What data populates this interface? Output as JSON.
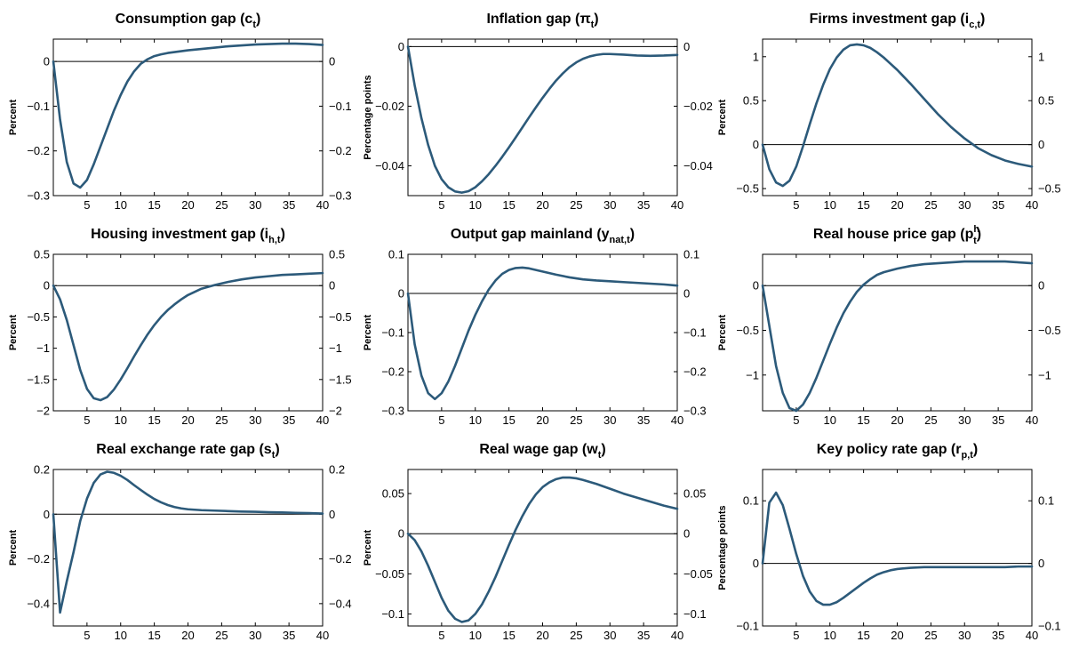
{
  "figure": {
    "line_color": "#2c5a7a",
    "axis_color": "#000000",
    "background": "#ffffff"
  },
  "chart_data": [
    {
      "type": "line",
      "title": "Consumption gap (c",
      "title_sub": "t",
      "title_close": ")",
      "ylabel": "Percent",
      "xlim": [
        0,
        40
      ],
      "ylim": [
        -0.3,
        0.05
      ],
      "xticks": [
        5,
        10,
        15,
        20,
        25,
        30,
        35,
        40
      ],
      "xtick_labels": [
        "5",
        "10",
        "15",
        "20",
        "25",
        "30",
        "35",
        "40"
      ],
      "yticks": [
        0,
        -0.1,
        -0.2,
        -0.3
      ],
      "ytick_labels": [
        "0",
        "−0.1",
        "−0.2",
        "−0.3"
      ],
      "x": [
        0,
        1,
        2,
        3,
        4,
        5,
        6,
        7,
        8,
        9,
        10,
        11,
        12,
        13,
        14,
        15,
        16,
        17,
        18,
        19,
        20,
        22,
        24,
        26,
        28,
        30,
        32,
        34,
        36,
        38,
        40
      ],
      "series": [
        {
          "values": [
            0,
            -0.13,
            -0.225,
            -0.273,
            -0.282,
            -0.265,
            -0.23,
            -0.19,
            -0.15,
            -0.11,
            -0.075,
            -0.045,
            -0.022,
            -0.005,
            0.005,
            0.012,
            0.016,
            0.019,
            0.021,
            0.023,
            0.025,
            0.028,
            0.031,
            0.034,
            0.036,
            0.038,
            0.039,
            0.04,
            0.04,
            0.039,
            0.037
          ]
        }
      ]
    },
    {
      "type": "line",
      "title": "Inflation gap (π",
      "title_sub": "t",
      "title_close": ")",
      "ylabel": "Percentage points",
      "xlim": [
        0,
        40
      ],
      "ylim": [
        -0.05,
        0.0025
      ],
      "xticks": [
        5,
        10,
        15,
        20,
        25,
        30,
        35,
        40
      ],
      "xtick_labels": [
        "5",
        "10",
        "15",
        "20",
        "25",
        "30",
        "35",
        "40"
      ],
      "yticks": [
        0,
        -0.02,
        -0.04
      ],
      "ytick_labels": [
        "0",
        "−0.02",
        "−0.04"
      ],
      "x": [
        0,
        1,
        2,
        3,
        4,
        5,
        6,
        7,
        8,
        9,
        10,
        11,
        12,
        13,
        14,
        15,
        16,
        17,
        18,
        19,
        20,
        21,
        22,
        23,
        24,
        25,
        26,
        27,
        28,
        29,
        30,
        32,
        34,
        36,
        38,
        40
      ],
      "series": [
        {
          "values": [
            0,
            -0.013,
            -0.024,
            -0.033,
            -0.04,
            -0.0445,
            -0.0472,
            -0.0486,
            -0.049,
            -0.0485,
            -0.0472,
            -0.0452,
            -0.0428,
            -0.04,
            -0.037,
            -0.0338,
            -0.0305,
            -0.0271,
            -0.0237,
            -0.0204,
            -0.0172,
            -0.0142,
            -0.0114,
            -0.009,
            -0.0069,
            -0.0053,
            -0.0041,
            -0.0033,
            -0.0028,
            -0.0025,
            -0.0025,
            -0.0027,
            -0.003,
            -0.0031,
            -0.003,
            -0.0028
          ]
        }
      ]
    },
    {
      "type": "line",
      "title": "Firms investment gap (i",
      "title_sub": "c,t",
      "title_close": ")",
      "ylabel": "Percent",
      "xlim": [
        0,
        40
      ],
      "ylim": [
        -0.58,
        1.2
      ],
      "xticks": [
        5,
        10,
        15,
        20,
        25,
        30,
        35,
        40
      ],
      "xtick_labels": [
        "5",
        "10",
        "15",
        "20",
        "25",
        "30",
        "35",
        "40"
      ],
      "yticks": [
        1,
        0.5,
        0,
        -0.5
      ],
      "ytick_labels": [
        "1",
        "0.5",
        "0",
        "−0.5"
      ],
      "x": [
        0,
        1,
        2,
        3,
        4,
        5,
        6,
        7,
        8,
        9,
        10,
        11,
        12,
        13,
        14,
        15,
        16,
        17,
        18,
        19,
        20,
        22,
        24,
        26,
        28,
        30,
        32,
        34,
        36,
        38,
        40
      ],
      "series": [
        {
          "values": [
            0,
            -0.28,
            -0.43,
            -0.47,
            -0.41,
            -0.25,
            -0.02,
            0.23,
            0.47,
            0.68,
            0.86,
            0.99,
            1.08,
            1.13,
            1.14,
            1.13,
            1.1,
            1.05,
            0.99,
            0.92,
            0.85,
            0.69,
            0.52,
            0.35,
            0.2,
            0.07,
            -0.04,
            -0.12,
            -0.18,
            -0.22,
            -0.25
          ]
        }
      ]
    },
    {
      "type": "line",
      "title": "Housing investment gap (i",
      "title_sub": "h,t",
      "title_close": ")",
      "ylabel": "Percent",
      "xlim": [
        0,
        40
      ],
      "ylim": [
        -2,
        0.5
      ],
      "xticks": [
        5,
        10,
        15,
        20,
        25,
        30,
        35,
        40
      ],
      "xtick_labels": [
        "5",
        "10",
        "15",
        "20",
        "25",
        "30",
        "35",
        "40"
      ],
      "yticks": [
        0.5,
        0,
        -0.5,
        -1,
        -1.5,
        -2
      ],
      "ytick_labels": [
        "0.5",
        "0",
        "−0.5",
        "−1",
        "−1.5",
        "−2"
      ],
      "x": [
        0,
        1,
        2,
        3,
        4,
        5,
        6,
        7,
        8,
        9,
        10,
        11,
        12,
        13,
        14,
        15,
        16,
        17,
        18,
        19,
        20,
        22,
        24,
        26,
        28,
        30,
        32,
        34,
        36,
        38,
        40
      ],
      "series": [
        {
          "values": [
            0,
            -0.22,
            -0.55,
            -0.95,
            -1.35,
            -1.65,
            -1.8,
            -1.83,
            -1.78,
            -1.66,
            -1.5,
            -1.32,
            -1.13,
            -0.95,
            -0.78,
            -0.63,
            -0.5,
            -0.39,
            -0.3,
            -0.22,
            -0.15,
            -0.05,
            0.01,
            0.06,
            0.1,
            0.13,
            0.15,
            0.17,
            0.18,
            0.19,
            0.2
          ]
        }
      ]
    },
    {
      "type": "line",
      "title": "Output gap mainland (y",
      "title_sub": "nat,t",
      "title_close": ")",
      "ylabel": "Percent",
      "xlim": [
        0,
        40
      ],
      "ylim": [
        -0.3,
        0.1
      ],
      "xticks": [
        5,
        10,
        15,
        20,
        25,
        30,
        35,
        40
      ],
      "xtick_labels": [
        "5",
        "10",
        "15",
        "20",
        "25",
        "30",
        "35",
        "40"
      ],
      "yticks": [
        0.1,
        0,
        -0.1,
        -0.2,
        -0.3
      ],
      "ytick_labels": [
        "0.1",
        "0",
        "−0.1",
        "−0.2",
        "−0.3"
      ],
      "x": [
        0,
        1,
        2,
        3,
        4,
        5,
        6,
        7,
        8,
        9,
        10,
        11,
        12,
        13,
        14,
        15,
        16,
        17,
        18,
        19,
        20,
        22,
        24,
        26,
        28,
        30,
        32,
        34,
        36,
        38,
        40
      ],
      "series": [
        {
          "values": [
            0,
            -0.13,
            -0.21,
            -0.255,
            -0.27,
            -0.255,
            -0.225,
            -0.185,
            -0.14,
            -0.095,
            -0.055,
            -0.02,
            0.01,
            0.033,
            0.05,
            0.06,
            0.065,
            0.066,
            0.064,
            0.06,
            0.056,
            0.048,
            0.041,
            0.036,
            0.033,
            0.031,
            0.029,
            0.027,
            0.025,
            0.023,
            0.02
          ]
        }
      ]
    },
    {
      "type": "line",
      "title": "Real house price gap (p",
      "title_sub": "t",
      "title_sup": "h",
      "title_close": ")",
      "ylabel": "Percent",
      "xlim": [
        0,
        40
      ],
      "ylim": [
        -1.4,
        0.35
      ],
      "xticks": [
        5,
        10,
        15,
        20,
        25,
        30,
        35,
        40
      ],
      "xtick_labels": [
        "5",
        "10",
        "15",
        "20",
        "25",
        "30",
        "35",
        "40"
      ],
      "yticks": [
        0,
        -0.5,
        -1
      ],
      "ytick_labels": [
        "0",
        "−0.5",
        "−1"
      ],
      "x": [
        0,
        1,
        2,
        3,
        4,
        5,
        6,
        7,
        8,
        9,
        10,
        11,
        12,
        13,
        14,
        15,
        16,
        17,
        18,
        19,
        20,
        22,
        24,
        26,
        28,
        30,
        32,
        34,
        36,
        38,
        40
      ],
      "series": [
        {
          "values": [
            0,
            -0.45,
            -0.9,
            -1.2,
            -1.37,
            -1.4,
            -1.33,
            -1.2,
            -1.03,
            -0.84,
            -0.65,
            -0.47,
            -0.31,
            -0.18,
            -0.07,
            0.01,
            0.07,
            0.12,
            0.15,
            0.17,
            0.19,
            0.22,
            0.24,
            0.25,
            0.26,
            0.27,
            0.27,
            0.27,
            0.27,
            0.26,
            0.25
          ]
        }
      ]
    },
    {
      "type": "line",
      "title": "Real exchange rate gap (s",
      "title_sub": "t",
      "title_close": ")",
      "ylabel": "Percent",
      "xlim": [
        0,
        40
      ],
      "ylim": [
        -0.5,
        0.2
      ],
      "xticks": [
        5,
        10,
        15,
        20,
        25,
        30,
        35,
        40
      ],
      "xtick_labels": [
        "5",
        "10",
        "15",
        "20",
        "25",
        "30",
        "35",
        "40"
      ],
      "yticks": [
        0.2,
        0,
        -0.2,
        -0.4
      ],
      "ytick_labels": [
        "0.2",
        "0",
        "−0.2",
        "−0.4"
      ],
      "x": [
        0,
        1,
        2,
        3,
        4,
        5,
        6,
        7,
        8,
        9,
        10,
        11,
        12,
        13,
        14,
        15,
        16,
        17,
        18,
        19,
        20,
        22,
        24,
        26,
        28,
        30,
        32,
        34,
        36,
        38,
        40
      ],
      "series": [
        {
          "values": [
            0,
            -0.44,
            -0.3,
            -0.17,
            -0.03,
            0.07,
            0.14,
            0.178,
            0.19,
            0.185,
            0.172,
            0.153,
            0.13,
            0.108,
            0.087,
            0.068,
            0.053,
            0.041,
            0.032,
            0.026,
            0.022,
            0.018,
            0.016,
            0.014,
            0.012,
            0.011,
            0.009,
            0.008,
            0.006,
            0.005,
            0.003
          ]
        }
      ]
    },
    {
      "type": "line",
      "title": "Real wage gap (w",
      "title_sub": "t",
      "title_close": ")",
      "ylabel": "Percent",
      "xlim": [
        0,
        40
      ],
      "ylim": [
        -0.115,
        0.08
      ],
      "xticks": [
        5,
        10,
        15,
        20,
        25,
        30,
        35,
        40
      ],
      "xtick_labels": [
        "5",
        "10",
        "15",
        "20",
        "25",
        "30",
        "35",
        "40"
      ],
      "yticks": [
        0.05,
        0,
        -0.05,
        -0.1
      ],
      "ytick_labels": [
        "0.05",
        "0",
        "−0.05",
        "−0.1"
      ],
      "x": [
        0,
        1,
        2,
        3,
        4,
        5,
        6,
        7,
        8,
        9,
        10,
        11,
        12,
        13,
        14,
        15,
        16,
        17,
        18,
        19,
        20,
        21,
        22,
        23,
        24,
        25,
        26,
        28,
        30,
        32,
        34,
        36,
        38,
        40
      ],
      "series": [
        {
          "values": [
            0,
            -0.008,
            -0.022,
            -0.04,
            -0.06,
            -0.08,
            -0.096,
            -0.106,
            -0.11,
            -0.108,
            -0.1,
            -0.088,
            -0.072,
            -0.054,
            -0.034,
            -0.014,
            0.005,
            0.022,
            0.037,
            0.049,
            0.058,
            0.064,
            0.068,
            0.07,
            0.07,
            0.069,
            0.067,
            0.062,
            0.056,
            0.05,
            0.045,
            0.04,
            0.035,
            0.031
          ]
        }
      ]
    },
    {
      "type": "line",
      "title": "Key policy rate gap (r",
      "title_sub": "p,t",
      "title_close": ")",
      "ylabel": "Percentage points",
      "xlim": [
        0,
        40
      ],
      "ylim": [
        -0.1,
        0.15
      ],
      "xticks": [
        5,
        10,
        15,
        20,
        25,
        30,
        35,
        40
      ],
      "xtick_labels": [
        "5",
        "10",
        "15",
        "20",
        "25",
        "30",
        "35",
        "40"
      ],
      "yticks": [
        0.1,
        0,
        -0.1
      ],
      "ytick_labels": [
        "0.1",
        "0",
        "−0.1"
      ],
      "x": [
        0,
        1,
        2,
        3,
        4,
        5,
        6,
        7,
        8,
        9,
        10,
        11,
        12,
        13,
        14,
        15,
        16,
        17,
        18,
        19,
        20,
        22,
        24,
        26,
        28,
        30,
        32,
        34,
        36,
        38,
        40
      ],
      "series": [
        {
          "values": [
            0,
            0.097,
            0.113,
            0.093,
            0.055,
            0.015,
            -0.02,
            -0.045,
            -0.06,
            -0.066,
            -0.066,
            -0.062,
            -0.055,
            -0.047,
            -0.039,
            -0.031,
            -0.024,
            -0.018,
            -0.014,
            -0.011,
            -0.009,
            -0.007,
            -0.006,
            -0.006,
            -0.006,
            -0.006,
            -0.006,
            -0.006,
            -0.006,
            -0.005,
            -0.005
          ]
        }
      ]
    }
  ]
}
